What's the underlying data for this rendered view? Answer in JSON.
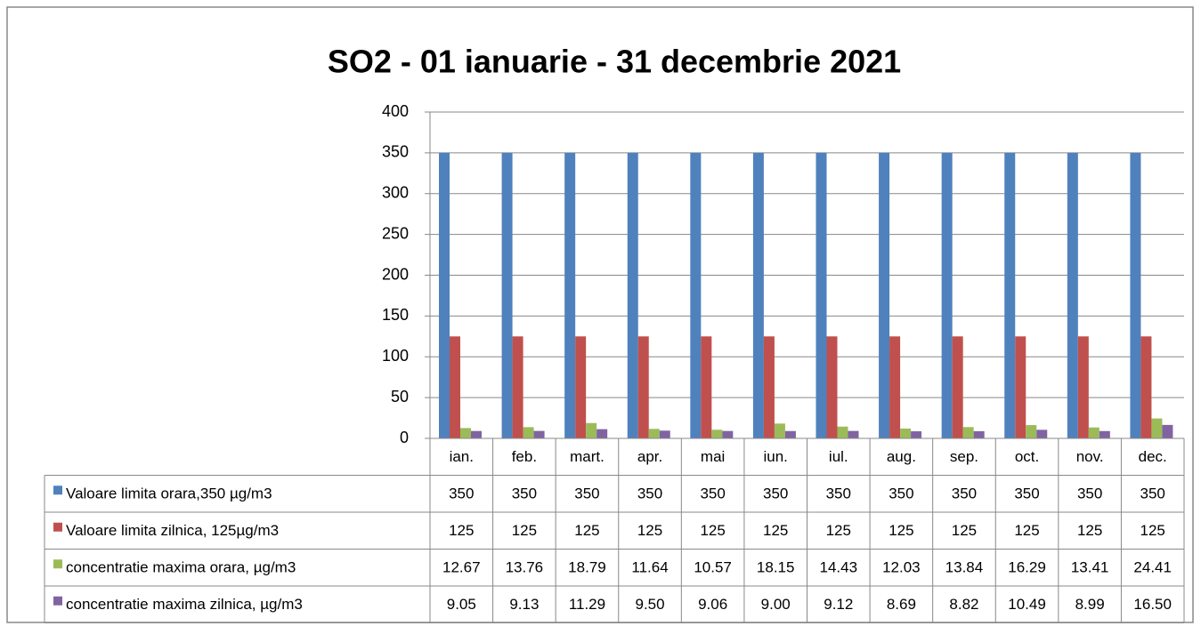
{
  "chart_data": {
    "type": "bar",
    "title": "SO2  - 01 ianuarie - 31 decembrie 2021",
    "categories": [
      "ian.",
      "feb.",
      "mart.",
      "apr.",
      "mai",
      "iun.",
      "iul.",
      "aug.",
      "sep.",
      "oct.",
      "nov.",
      "dec."
    ],
    "series": [
      {
        "name": "Valoare limita orara,350 µg/m3",
        "color": "#4f81bd",
        "values": [
          350,
          350,
          350,
          350,
          350,
          350,
          350,
          350,
          350,
          350,
          350,
          350
        ]
      },
      {
        "name": "Valoare limita zilnica, 125µg/m3",
        "color": "#c0504d",
        "values": [
          125,
          125,
          125,
          125,
          125,
          125,
          125,
          125,
          125,
          125,
          125,
          125
        ]
      },
      {
        "name": "concentratie maxima  orara, µg/m3",
        "color": "#9bbb59",
        "values": [
          12.67,
          13.76,
          18.79,
          11.64,
          10.57,
          18.15,
          14.43,
          12.03,
          13.84,
          16.29,
          13.41,
          24.41
        ]
      },
      {
        "name": "concentratie maxima  zilnica, µg/m3",
        "color": "#8064a2",
        "values": [
          9.05,
          9.13,
          11.29,
          9.5,
          9.06,
          9,
          9.12,
          8.69,
          8.82,
          10.49,
          8.99,
          16.5
        ],
        "value_labels": [
          "9.05",
          "9.13",
          "11.29",
          "9.50",
          "9.06",
          "9.00",
          "9.12",
          "8.69",
          "8.82",
          "10.49",
          "8.99",
          "16.50"
        ]
      }
    ],
    "ylim": [
      0,
      400
    ],
    "yticks": [
      0,
      50,
      100,
      150,
      200,
      250,
      300,
      350,
      400
    ],
    "grid": true,
    "data_table": true
  }
}
